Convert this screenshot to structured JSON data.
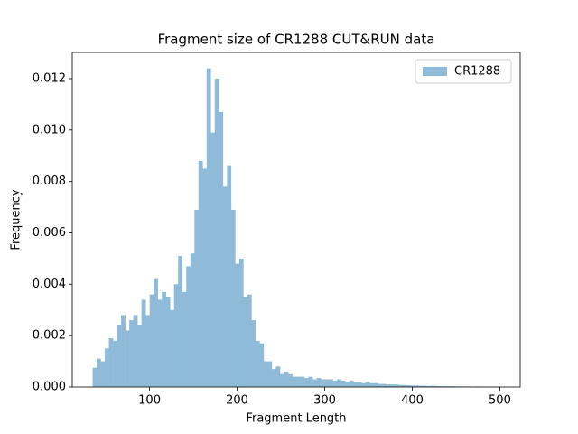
{
  "chart_data": {
    "type": "histogram",
    "title": "Fragment size of CR1288 CUT&RUN data",
    "x_label": "Fragment Length",
    "y_label": "Frequency",
    "series": [
      {
        "name": "CR1288",
        "color": "#8fbbd9",
        "bins": [
          35,
          39.65,
          44.3,
          48.95,
          53.6,
          58.25,
          62.9,
          67.55,
          72.2,
          76.85,
          81.5,
          86.15,
          90.8,
          95.45,
          100.1,
          104.75,
          109.4,
          114.05,
          118.7,
          123.35,
          128,
          132.65,
          137.3,
          141.95,
          146.6,
          151.25,
          155.9,
          160.55,
          165.2,
          169.85,
          174.5,
          179.15,
          183.8,
          188.45,
          193.1,
          197.75,
          202.4,
          207.05,
          211.7,
          216.35,
          221,
          225.65,
          230.3,
          234.95,
          239.6,
          244.25,
          248.9,
          253.55,
          258.2,
          262.85,
          267.5,
          272.15,
          276.8,
          281.45,
          286.1,
          290.75,
          295.4,
          300.05,
          304.7,
          309.35,
          314,
          318.65,
          323.3,
          327.95,
          332.6,
          337.25,
          341.9,
          346.55,
          351.2,
          355.85,
          360.5,
          365.15,
          369.8,
          374.45,
          379.1,
          383.75,
          388.4,
          393.05,
          397.7,
          402.35,
          407,
          411.65,
          416.3,
          420.95,
          425.6,
          430.25,
          434.9,
          439.55,
          444.2,
          448.85,
          453.5,
          458.15,
          462.8,
          467.45,
          472.1,
          476.75,
          481.4,
          486.05,
          490.7,
          495.35,
          500
        ],
        "counts": [
          0.00075,
          0.0011,
          0.001,
          0.0015,
          0.0019,
          0.0018,
          0.0024,
          0.0028,
          0.0022,
          0.0026,
          0.0028,
          0.0024,
          0.0034,
          0.0028,
          0.0036,
          0.0042,
          0.0034,
          0.0037,
          0.0035,
          0.003,
          0.004,
          0.0051,
          0.0037,
          0.0047,
          0.0052,
          0.0069,
          0.0088,
          0.0085,
          0.0124,
          0.0099,
          0.012,
          0.0107,
          0.0078,
          0.0086,
          0.0069,
          0.0048,
          0.005,
          0.0035,
          0.0036,
          0.0026,
          0.0018,
          0.0017,
          0.001,
          0.001,
          0.0007,
          0.0008,
          0.0005,
          0.0006,
          0.0005,
          0.0004,
          0.0004,
          0.0004,
          0.00035,
          0.0004,
          0.0003,
          0.00035,
          0.0003,
          0.0003,
          0.0003,
          0.00025,
          0.0003,
          0.00025,
          0.0002,
          0.00025,
          0.0002,
          0.0002,
          0.00015,
          0.0002,
          0.00015,
          0.00015,
          0.00012,
          0.00012,
          0.0001,
          0.0001,
          0.0001,
          8e-05,
          8e-05,
          7e-05,
          6e-05,
          6e-05,
          5e-05,
          5e-05,
          4e-05,
          5e-05,
          4e-05,
          3e-05,
          3e-05,
          3e-05,
          3e-05,
          2e-05,
          2e-05,
          2e-05,
          2e-05,
          1e-05,
          2e-05,
          1e-05,
          1e-05,
          1e-05,
          1e-05,
          1e-05
        ]
      }
    ],
    "xlim": [
      11.75,
      523.25
    ],
    "xticks": [
      100,
      200,
      300,
      400,
      500
    ],
    "ylim": [
      0,
      0.01302
    ],
    "yticks": [
      {
        "value": 0,
        "label": "0.000"
      },
      {
        "value": 0.002,
        "label": "0.002"
      },
      {
        "value": 0.004,
        "label": "0.004"
      },
      {
        "value": 0.006,
        "label": "0.006"
      },
      {
        "value": 0.008,
        "label": "0.008"
      },
      {
        "value": 0.01,
        "label": "0.010"
      },
      {
        "value": 0.012,
        "label": "0.012"
      }
    ],
    "legend": "upper right"
  }
}
